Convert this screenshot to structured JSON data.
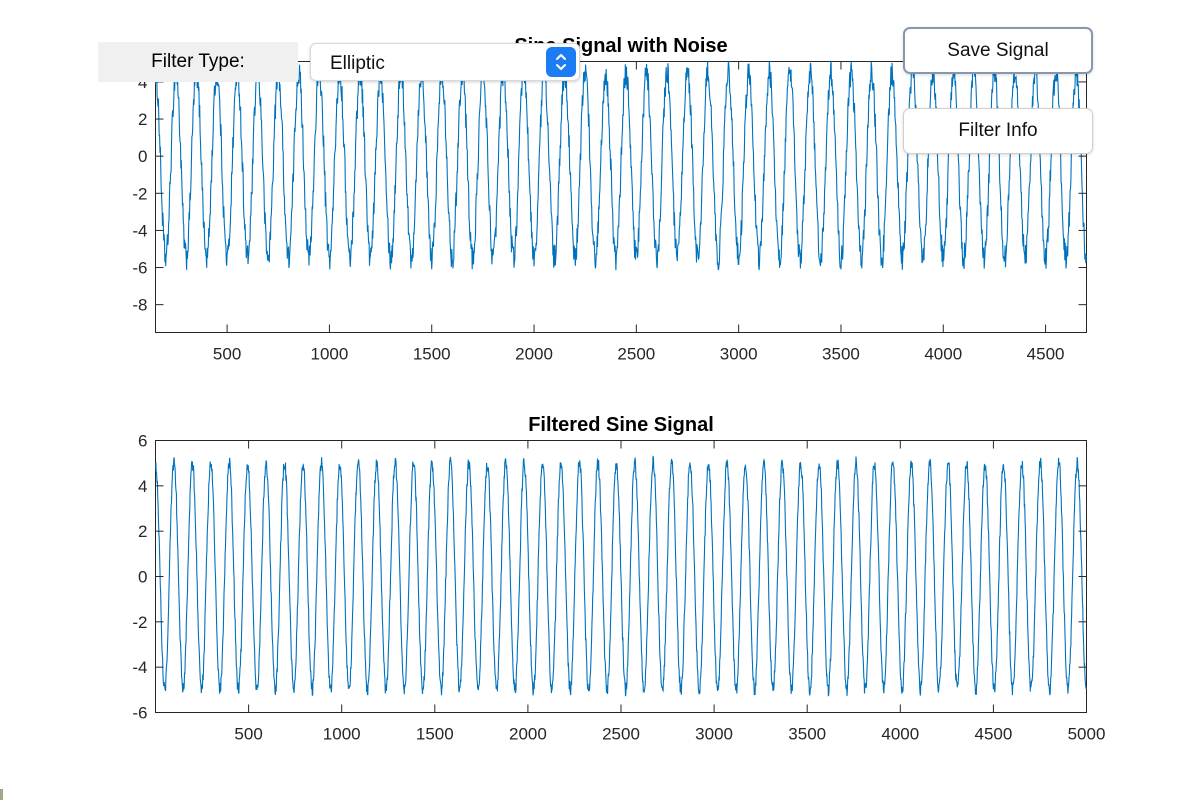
{
  "controls": {
    "filter_type_label": "Filter Type:",
    "filter_type_value": "Elliptic",
    "save_button": "Save Signal",
    "info_button": "Filter Info"
  },
  "chart_data": [
    {
      "type": "line",
      "title": "Sine Signal with Noise",
      "xlim": [
        150,
        4700
      ],
      "ylim": [
        -9.5,
        5.1
      ],
      "xticks": [
        500,
        1000,
        1500,
        2000,
        2500,
        3000,
        3500,
        4000,
        4500
      ],
      "yticks": [
        -8,
        -6,
        -4,
        -2,
        0,
        2,
        4
      ],
      "grid": false,
      "line_color": "#0072BD",
      "signal": {
        "amplitude": 5,
        "offset": -0.5,
        "period": 100,
        "noise": 0.7,
        "x_start": 150,
        "x_end": 4700
      },
      "series": [
        {
          "name": "",
          "description": "noisy sine wave, peaks near 4.5, troughs near -5.5 to -6.9"
        }
      ]
    },
    {
      "type": "line",
      "title": "Filtered Sine Signal",
      "xlim": [
        0,
        5000
      ],
      "ylim": [
        -6,
        6
      ],
      "xticks": [
        500,
        1000,
        1500,
        2000,
        2500,
        3000,
        3500,
        4000,
        4500,
        5000
      ],
      "yticks": [
        -6,
        -4,
        -2,
        0,
        2,
        4,
        6
      ],
      "grid": false,
      "line_color": "#0072BD",
      "signal": {
        "amplitude": 5,
        "offset": 0,
        "period": 99,
        "noise": 0.3,
        "x_start": 0,
        "x_end": 5000
      },
      "series": [
        {
          "name": "",
          "description": "filtered sine wave, amplitude about 5"
        }
      ]
    }
  ]
}
